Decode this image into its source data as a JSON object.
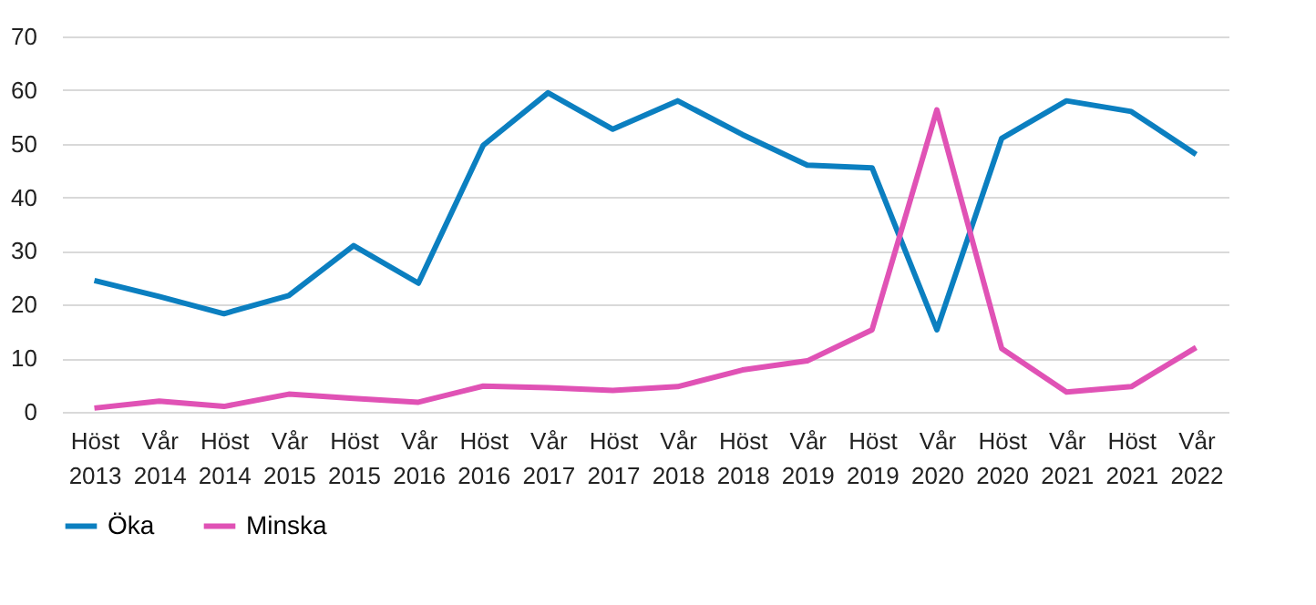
{
  "chart_data": {
    "type": "line",
    "categories": [
      "Höst 2013",
      "Vår 2014",
      "Höst 2014",
      "Vår 2015",
      "Höst 2015",
      "Vår 2016",
      "Höst 2016",
      "Vår 2017",
      "Höst 2017",
      "Vår 2018",
      "Höst 2018",
      "Vår 2019",
      "Höst 2019",
      "Vår 2020",
      "Höst 2020",
      "Vår 2021",
      "Höst 2021",
      "Vår 2022"
    ],
    "series": [
      {
        "name": "Öka",
        "color": "#0b7fc0",
        "values": [
          24.5,
          21.5,
          18.3,
          21.7,
          31,
          24,
          49.7,
          59.5,
          52.7,
          58,
          51.7,
          46,
          45.5,
          15.3,
          51,
          58,
          56,
          48
        ]
      },
      {
        "name": "Minska",
        "color": "#e052b5",
        "values": [
          0.7,
          2,
          1,
          3.3,
          2.5,
          1.8,
          4.8,
          4.5,
          4,
          4.7,
          7.8,
          9.5,
          15.3,
          56.3,
          11.8,
          3.7,
          4.7,
          12
        ]
      }
    ],
    "ylim": [
      0,
      70
    ],
    "yticks": [
      0,
      10,
      20,
      30,
      40,
      50,
      60,
      70
    ],
    "grid": "y",
    "legend": "bottom",
    "line_style": "solid",
    "marker": "none"
  }
}
